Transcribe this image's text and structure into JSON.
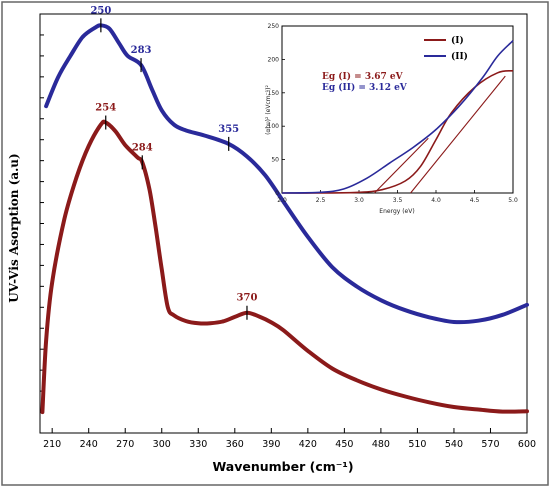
{
  "chart_data": [
    {
      "type": "line",
      "xlabel": "Wavenumber (cm⁻¹)",
      "ylabel": "UV-Vis Asorption (a.u)",
      "xlim": [
        200,
        600
      ],
      "ylim": [
        0,
        100
      ],
      "x_ticks": [
        210,
        240,
        270,
        300,
        330,
        360,
        390,
        420,
        450,
        480,
        510,
        540,
        570,
        600
      ],
      "y_ticks_labeled": false,
      "grid": false,
      "series": [
        {
          "color": "#2a2a9a",
          "x": [
            205,
            215,
            225,
            235,
            245,
            250,
            257,
            265,
            272,
            283,
            292,
            300,
            310,
            320,
            335,
            355,
            370,
            385,
            400,
            420,
            440,
            460,
            480,
            500,
            520,
            540,
            560,
            580,
            600
          ],
          "y": [
            78,
            85,
            90,
            94.5,
            96.7,
            97.3,
            96.5,
            93,
            90,
            87.8,
            82,
            77,
            73.6,
            72.2,
            71,
            69,
            66,
            61.5,
            55.2,
            46.8,
            39.6,
            35,
            31.7,
            29.3,
            27.6,
            26.5,
            26.8,
            28.2,
            30.6
          ]
        },
        {
          "color": "#8b1a1a",
          "x": [
            202,
            205,
            210,
            220,
            230,
            240,
            250,
            254,
            262,
            270,
            280,
            284,
            290,
            295,
            300,
            305,
            310,
            320,
            330,
            340,
            350,
            360,
            370,
            380,
            390,
            400,
            420,
            440,
            460,
            480,
            500,
            520,
            540,
            560,
            580,
            600
          ],
          "y": [
            5,
            22,
            36,
            51,
            61,
            68.5,
            73.6,
            74.1,
            72,
            68.7,
            65.8,
            64.6,
            58,
            49,
            39,
            30,
            28.1,
            26.7,
            26.2,
            26.2,
            26.6,
            27.7,
            28.7,
            27.8,
            26.4,
            24.5,
            19.6,
            15.4,
            12.6,
            10.4,
            8.7,
            7.3,
            6.2,
            5.6,
            5.1,
            5.2
          ]
        }
      ],
      "annotations": [
        {
          "label": "250",
          "x": 250,
          "y": 97.3,
          "color": "#2a2a9a"
        },
        {
          "label": "283",
          "x": 283,
          "y": 87.8,
          "color": "#2a2a9a"
        },
        {
          "label": "355",
          "x": 355,
          "y": 69,
          "color": "#2a2a9a"
        },
        {
          "label": "254",
          "x": 254,
          "y": 74.1,
          "color": "#8b1a1a"
        },
        {
          "label": "284",
          "x": 284,
          "y": 64.6,
          "color": "#8b1a1a"
        },
        {
          "label": "370",
          "x": 370,
          "y": 28.7,
          "color": "#8b1a1a"
        }
      ]
    },
    {
      "type": "line",
      "xlabel": "Energy (eV)",
      "ylabel": "(αhυ)² (eVcm⁻¹)²",
      "xlim": [
        2.0,
        5.0
      ],
      "ylim": [
        0,
        250
      ],
      "x_ticks": [
        "2.0",
        "2.5",
        "3.0",
        "3.5",
        "4.0",
        "4.5",
        "5.0"
      ],
      "y_ticks": [
        "0",
        "50",
        "100",
        "150",
        "200",
        "250"
      ],
      "legend_position": "top-right",
      "series": [
        {
          "name": "(I)",
          "color": "#8b1a1a",
          "x": [
            2.0,
            2.5,
            3.0,
            3.3,
            3.6,
            3.8,
            4.0,
            4.2,
            4.5,
            4.8,
            5.0
          ],
          "y": [
            0,
            0,
            1,
            5,
            18,
            40,
            80,
            120,
            158,
            180,
            183
          ]
        },
        {
          "name": "(II)",
          "color": "#2a2a9a",
          "x": [
            2.0,
            2.5,
            2.8,
            3.1,
            3.4,
            3.7,
            4.0,
            4.3,
            4.6,
            4.8,
            5.0
          ],
          "y": [
            0,
            1,
            6,
            22,
            45,
            68,
            95,
            130,
            172,
            205,
            228
          ]
        }
      ],
      "tangents": [
        {
          "color": "#8b1a1a",
          "x": [
            3.67,
            4.9
          ],
          "y": [
            0,
            175
          ]
        },
        {
          "color": "#8b1a1a",
          "x": [
            3.2,
            3.9
          ],
          "y": [
            0,
            82
          ]
        }
      ],
      "annotations": [
        {
          "label": "Eg (I) = 3.67 eV",
          "color": "#8b1a1a"
        },
        {
          "label": "Eg (II) = 3.12 eV",
          "color": "#2a2a9a"
        }
      ]
    }
  ]
}
